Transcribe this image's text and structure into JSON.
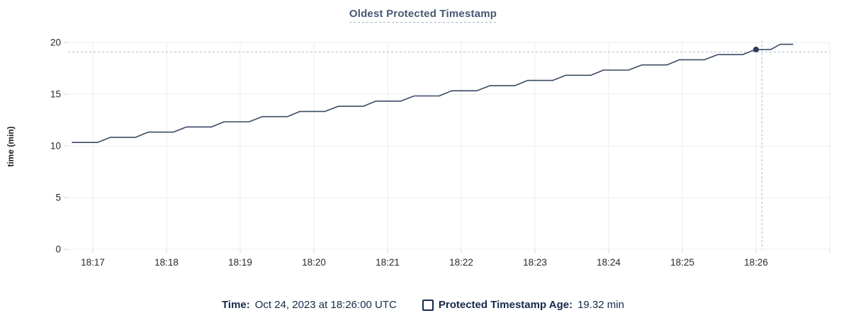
{
  "title": "Oldest Protected Timestamp",
  "y_axis_label": "time (min)",
  "footer": {
    "time_label": "Time:",
    "time_value": "Oct 24, 2023 at 18:26:00 UTC",
    "series_label": "Protected Timestamp Age:",
    "series_value": "19.32 min"
  },
  "colors": {
    "title": "#475872",
    "grid": "#ececec",
    "tick_stub": "#d2d4d6",
    "axis_text": "#25292e",
    "line": "#3b4a64",
    "dot": "#2b3a57",
    "crosshair": "#a9b9c3",
    "legend_text": "#152a4a",
    "background": "#ffffff"
  },
  "chart_data": {
    "type": "line",
    "title": "Oldest Protected Timestamp",
    "xlabel": "",
    "ylabel": "time (min)",
    "ylim": [
      0,
      20
    ],
    "y_ticks": [
      0,
      5,
      10,
      15,
      20
    ],
    "x_ticks": [
      {
        "t": 17,
        "label": "18:17"
      },
      {
        "t": 18,
        "label": "18:18"
      },
      {
        "t": 19,
        "label": "18:19"
      },
      {
        "t": 20,
        "label": "18:20"
      },
      {
        "t": 21,
        "label": "18:21"
      },
      {
        "t": 22,
        "label": "18:22"
      },
      {
        "t": 23,
        "label": "18:23"
      },
      {
        "t": 24,
        "label": "18:24"
      },
      {
        "t": 25,
        "label": "18:25"
      },
      {
        "t": 26,
        "label": "18:26"
      }
    ],
    "extra_unlabeled_x_gridlines_t": [
      27
    ],
    "x_range_minutes_after_1800": [
      16.663,
      27.0
    ],
    "grid": true,
    "legend_position": "bottom",
    "series": [
      {
        "name": "Protected Timestamp Age",
        "unit": "min",
        "points": [
          [
            16.72,
            10.33
          ],
          [
            17.06,
            10.33
          ],
          [
            17.24,
            10.83
          ],
          [
            17.58,
            10.83
          ],
          [
            17.75,
            11.33
          ],
          [
            18.09,
            11.33
          ],
          [
            18.27,
            11.83
          ],
          [
            18.61,
            11.83
          ],
          [
            18.78,
            12.33
          ],
          [
            19.12,
            12.33
          ],
          [
            19.3,
            12.83
          ],
          [
            19.64,
            12.83
          ],
          [
            19.81,
            13.33
          ],
          [
            20.15,
            13.33
          ],
          [
            20.33,
            13.83
          ],
          [
            20.67,
            13.83
          ],
          [
            20.84,
            14.33
          ],
          [
            21.18,
            14.33
          ],
          [
            21.36,
            14.83
          ],
          [
            21.7,
            14.83
          ],
          [
            21.87,
            15.33
          ],
          [
            22.21,
            15.33
          ],
          [
            22.39,
            15.83
          ],
          [
            22.73,
            15.83
          ],
          [
            22.9,
            16.33
          ],
          [
            23.24,
            16.33
          ],
          [
            23.42,
            16.83
          ],
          [
            23.76,
            16.83
          ],
          [
            23.93,
            17.33
          ],
          [
            24.27,
            17.33
          ],
          [
            24.45,
            17.83
          ],
          [
            24.79,
            17.83
          ],
          [
            24.96,
            18.33
          ],
          [
            25.3,
            18.33
          ],
          [
            25.48,
            18.83
          ],
          [
            25.82,
            18.83
          ],
          [
            25.99,
            19.32
          ],
          [
            26.2,
            19.32
          ],
          [
            26.33,
            19.82
          ],
          [
            26.5,
            19.82
          ]
        ]
      }
    ],
    "highlight_point": {
      "t": 26.0,
      "value": 19.32,
      "displayed_value": "19.32 min",
      "displayed_time": "Oct 24, 2023 at 18:26:00 UTC"
    },
    "crosshair": {
      "t": 26.08,
      "value": 19.08
    }
  }
}
